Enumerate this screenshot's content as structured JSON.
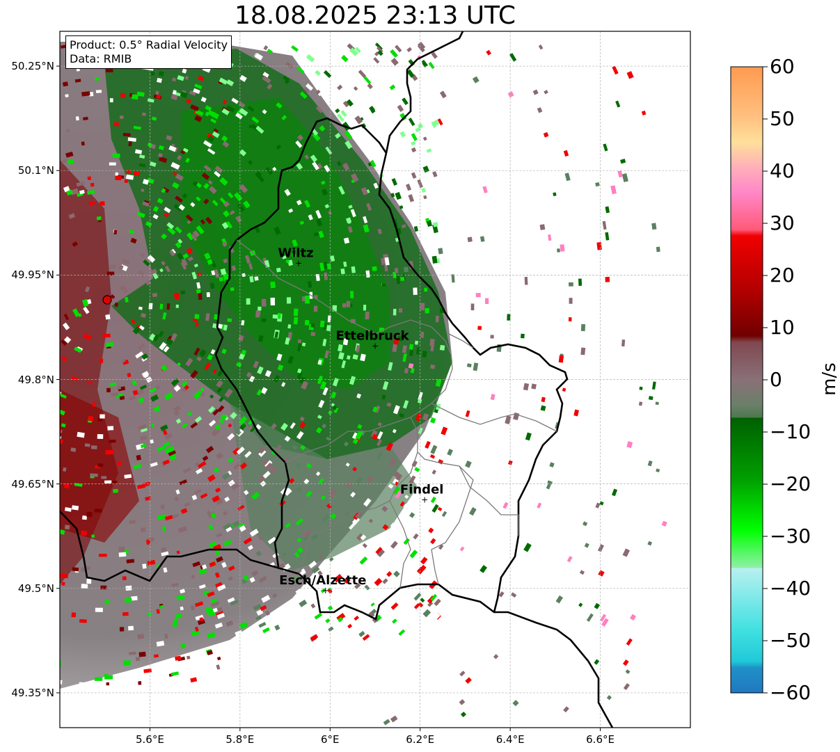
{
  "title": "18.08.2025 23:13 UTC",
  "info": {
    "product": "Product: 0.5° Radial Velocity",
    "data": "Data: RMIB"
  },
  "map": {
    "lon_range": [
      5.4,
      6.8
    ],
    "lat_range": [
      49.3,
      50.3
    ],
    "x_ticks": [
      "5.6°E",
      "5.8°E",
      "6°E",
      "6.2°E",
      "6.4°E",
      "6.6°E"
    ],
    "y_ticks": [
      "50.25°N",
      "50.1°N",
      "49.95°N",
      "49.8°N",
      "49.65°N",
      "49.5°N",
      "49.35°N"
    ],
    "grid": true,
    "radar_site": {
      "lon": 5.505,
      "lat": 49.915,
      "color": "#e00000"
    },
    "cities": [
      {
        "name": "Wiltz",
        "lon": 5.93,
        "lat": 49.967
      },
      {
        "name": "Ettelbruck",
        "lon": 6.1,
        "lat": 49.848
      },
      {
        "name": "Findel",
        "lon": 6.21,
        "lat": 49.627
      },
      {
        "name": "Esch/Alzette",
        "lon": 5.99,
        "lat": 49.497
      }
    ]
  },
  "colorbar": {
    "label": "m/s",
    "min": -60,
    "max": 60,
    "ticks": [
      "60",
      "50",
      "40",
      "30",
      "20",
      "10",
      "0",
      "−10",
      "−20",
      "−30",
      "−40",
      "−50",
      "−60"
    ],
    "colors": {
      "orange": "#ff9a50",
      "peach": "#ffd090",
      "pink": "#ff80c0",
      "red": "#f00000",
      "dark_red": "#7a0000",
      "mauve": "#8a6a70",
      "gray_green": "#5a8060",
      "dark_green": "#006a00",
      "green": "#00e000",
      "light_green": "#80ff90",
      "light_cyan": "#b0f0f0",
      "cyan": "#20d8d8",
      "blue": "#2080c0"
    }
  }
}
